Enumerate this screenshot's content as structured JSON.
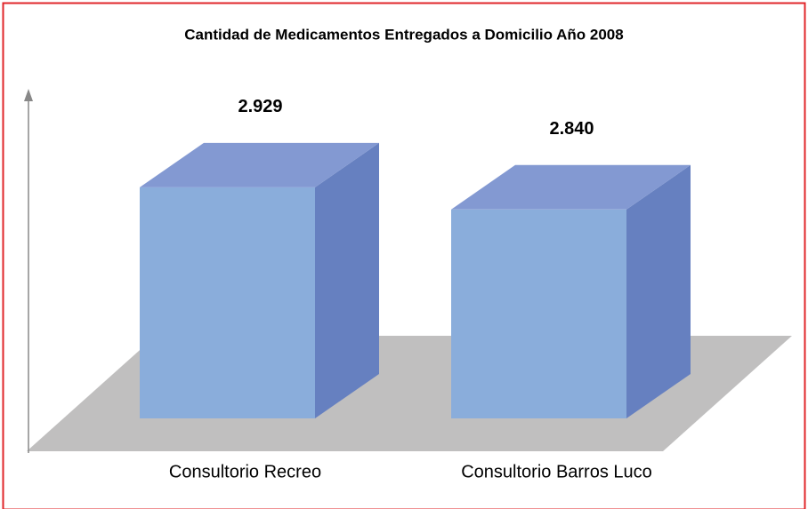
{
  "chart_data": {
    "type": "bar3d",
    "title": "Cantidad de Medicamentos Entregados  a Domicilio Año 2008",
    "categories": [
      "Consultorio Recreo",
      "Consultorio Barros Luco"
    ],
    "values": [
      2929,
      2840
    ],
    "value_labels": [
      "2.929",
      "2.840"
    ],
    "colors": {
      "front": "#8aaddb",
      "top": "#8399d2",
      "side": "#6680c0"
    },
    "ylim": [
      2000,
      3000
    ]
  }
}
